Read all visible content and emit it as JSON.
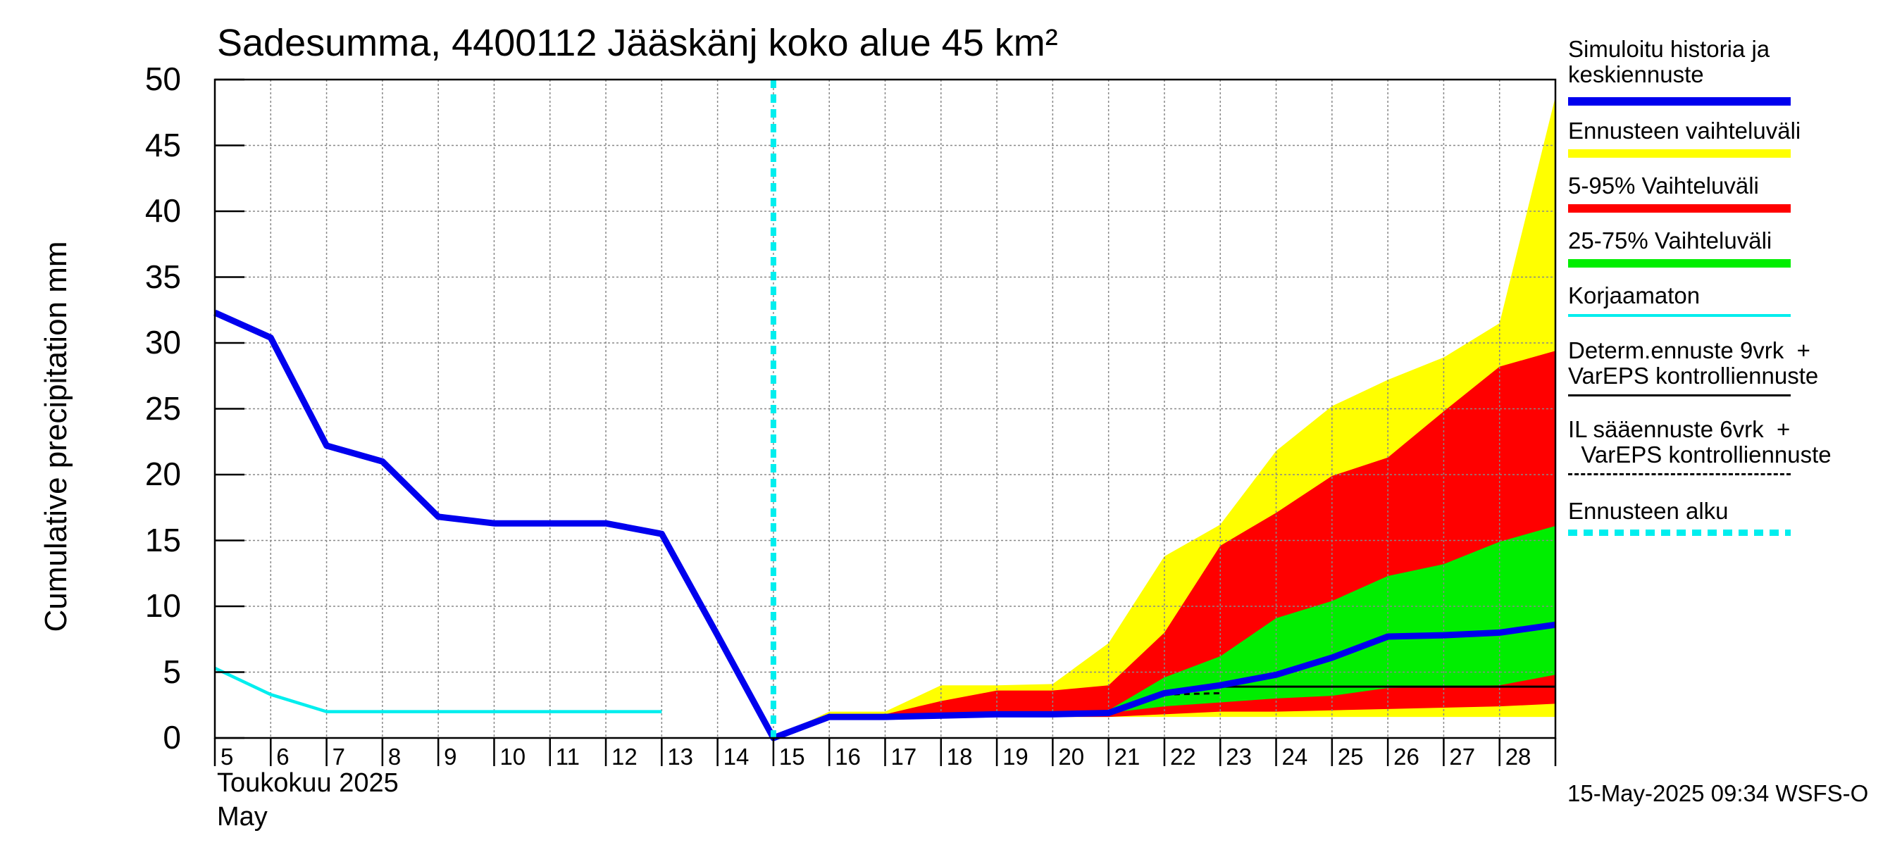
{
  "header": {
    "title": "Sadesumma, 4400112 Jääskänj koko alue 45 km²"
  },
  "yaxis": {
    "label": "Cumulative precipitation   mm",
    "ticks": [
      "0",
      "5",
      "10",
      "15",
      "20",
      "25",
      "30",
      "35",
      "40",
      "45",
      "50"
    ]
  },
  "xaxis": {
    "ticks": [
      "5",
      "6",
      "7",
      "8",
      "9",
      "10",
      "11",
      "12",
      "13",
      "14",
      "15",
      "16",
      "17",
      "18",
      "19",
      "20",
      "21",
      "22",
      "23",
      "24",
      "25",
      "26",
      "27",
      "28"
    ],
    "month_fi": "Toukokuu  2025",
    "month_en": "May"
  },
  "legend": [
    {
      "label": "Simuloitu historia ja\nkeskiennuste",
      "color": "#0000ee",
      "style": "thick"
    },
    {
      "label": "Ennusteen vaihteluväli",
      "color": "#ffff00",
      "style": "thick"
    },
    {
      "label": "5-95% Vaihteluväli",
      "color": "#ff0000",
      "style": "thick"
    },
    {
      "label": "25-75% Vaihteluväli",
      "color": "#00ee00",
      "style": "thick"
    },
    {
      "label": "Korjaamaton",
      "color": "#00eeee",
      "style": "thin"
    },
    {
      "label": "Determ.ennuste 9vrk  +\nVarEPS kontrolliennuste",
      "color": "#000000",
      "style": "line"
    },
    {
      "label": "IL sääennuste 6vrk  +\n  VarEPS kontrolliennuste",
      "color": "#000000",
      "style": "dashed"
    },
    {
      "label": "Ennusteen alku",
      "color": "#00eeee",
      "style": "dotted"
    }
  ],
  "footer": {
    "timestamp": "15-May-2025 09:34 WSFS-O"
  },
  "chart_data": {
    "type": "area",
    "title": "Sadesumma, 4400112 Jääskänj koko alue 45 km²",
    "ylabel": "Cumulative precipitation   mm",
    "xlabel": "",
    "ylim": [
      0,
      50
    ],
    "xlim": [
      5,
      29
    ],
    "grid": true,
    "legend_placement": "right",
    "forecast_start": 15,
    "series": [
      {
        "name": "Simuloitu historia ja keskiennuste",
        "color": "#0000ee",
        "points": [
          [
            5,
            32.3
          ],
          [
            6,
            30.4
          ],
          [
            7,
            22.2
          ],
          [
            8,
            21.0
          ],
          [
            9,
            16.8
          ],
          [
            10,
            16.3
          ],
          [
            11,
            16.3
          ],
          [
            12,
            16.3
          ],
          [
            13,
            15.5
          ],
          [
            14,
            7.8
          ],
          [
            15,
            0.0
          ],
          [
            16,
            1.6
          ],
          [
            17,
            1.6
          ],
          [
            18,
            1.7
          ],
          [
            19,
            1.8
          ],
          [
            20,
            1.8
          ],
          [
            21,
            1.9
          ],
          [
            22,
            3.4
          ],
          [
            23,
            4.0
          ],
          [
            24,
            4.8
          ],
          [
            25,
            6.1
          ],
          [
            26,
            7.7
          ],
          [
            27,
            7.8
          ],
          [
            28,
            8.0
          ],
          [
            29,
            8.6
          ]
        ]
      },
      {
        "name": "Korjaamaton",
        "color": "#00eeee",
        "points": [
          [
            5,
            5.3
          ],
          [
            6,
            3.3
          ],
          [
            7,
            2.0
          ],
          [
            8,
            2.0
          ],
          [
            9,
            2.0
          ],
          [
            10,
            2.0
          ],
          [
            11,
            2.0
          ],
          [
            12,
            2.0
          ],
          [
            13,
            2.0
          ]
        ]
      },
      {
        "name": "Determ.ennuste 9vrk + VarEPS kontrolliennuste",
        "color": "#000000",
        "points": [
          [
            15,
            0.0
          ],
          [
            16,
            1.6
          ],
          [
            17,
            1.6
          ],
          [
            18,
            1.7
          ],
          [
            19,
            1.8
          ],
          [
            20,
            1.8
          ],
          [
            21,
            1.8
          ],
          [
            22,
            3.3
          ],
          [
            23,
            3.9
          ],
          [
            24,
            3.9
          ],
          [
            25,
            3.9
          ],
          [
            26,
            3.9
          ],
          [
            27,
            3.9
          ],
          [
            28,
            3.9
          ],
          [
            29,
            3.9
          ]
        ]
      },
      {
        "name": "IL sääennuste 6vrk + VarEPS kontrolliennuste",
        "color": "#000000",
        "points": [
          [
            21,
            1.8
          ],
          [
            22,
            3.3
          ],
          [
            23,
            3.4
          ]
        ]
      }
    ],
    "bands": [
      {
        "name": "Ennusteen vaihteluväli",
        "color": "#ffff00",
        "x": [
          15,
          16,
          17,
          18,
          19,
          20,
          21,
          22,
          23,
          24,
          25,
          26,
          27,
          28,
          29
        ],
        "low": [
          0,
          1.6,
          1.6,
          1.6,
          1.6,
          1.6,
          1.6,
          1.6,
          1.6,
          1.6,
          1.6,
          1.6,
          1.6,
          1.6,
          1.6
        ],
        "high": [
          0,
          2.0,
          2.0,
          4.0,
          4.0,
          4.1,
          7.2,
          13.8,
          16.2,
          21.8,
          25.2,
          27.2,
          28.9,
          31.5,
          48.7
        ]
      },
      {
        "name": "5-95% Vaihteluväli",
        "color": "#ff0000",
        "x": [
          15,
          16,
          17,
          18,
          19,
          20,
          21,
          22,
          23,
          24,
          25,
          26,
          27,
          28,
          29
        ],
        "low": [
          0,
          1.6,
          1.6,
          1.6,
          1.6,
          1.6,
          1.6,
          1.8,
          2.0,
          2.0,
          2.1,
          2.2,
          2.3,
          2.4,
          2.6
        ],
        "high": [
          0,
          1.8,
          1.8,
          2.8,
          3.6,
          3.6,
          4.0,
          8.0,
          14.6,
          17.1,
          19.9,
          21.3,
          24.8,
          28.2,
          29.4
        ]
      },
      {
        "name": "25-75% Vaihteluväli",
        "color": "#00ee00",
        "x": [
          15,
          16,
          17,
          18,
          19,
          20,
          21,
          22,
          23,
          24,
          25,
          26,
          27,
          28,
          29
        ],
        "low": [
          0,
          1.6,
          1.6,
          1.7,
          1.8,
          1.8,
          1.9,
          2.4,
          2.7,
          3.0,
          3.2,
          3.8,
          3.9,
          4.0,
          4.8
        ],
        "high": [
          0,
          1.7,
          1.7,
          1.8,
          2.0,
          2.0,
          2.1,
          4.6,
          6.2,
          9.1,
          10.4,
          12.3,
          13.2,
          14.9,
          16.1
        ]
      }
    ]
  }
}
